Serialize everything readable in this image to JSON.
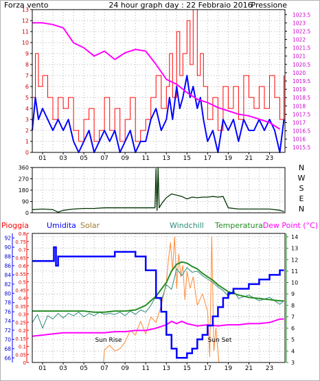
{
  "colors": {
    "wind": "#ff0000",
    "wind_avg": "#0000ff",
    "pressure": "#ff00ff",
    "direction": "#003300",
    "rain": "#ff0000",
    "humidity": "#0000ff",
    "solar": "#ff8833",
    "windchill": "#2e8b7a",
    "temperature": "#228b22",
    "dewpoint": "#ff00ff",
    "frame": "#000000",
    "grid": "#9a9a9a",
    "title": "#000080"
  },
  "header": {
    "left_label": "Forza vento",
    "title": "24 hour graph day : 22 Febbraio 2016",
    "right_label": "Pressione"
  },
  "sun": {
    "rise_label": "Sun Rise",
    "set_label": "Sun Set"
  },
  "chart_data": [
    {
      "type": "line",
      "id": "wind-pressure",
      "x_ticks": [
        "01",
        "03",
        "05",
        "07",
        "09",
        "11",
        "13",
        "15",
        "17",
        "19",
        "21",
        "23"
      ],
      "xlim": [
        0,
        24.5
      ],
      "y_left": {
        "label": "Forza vento",
        "ticks": [
          0,
          1,
          2,
          3,
          4,
          5,
          6,
          7,
          8,
          9,
          10,
          11,
          12,
          13
        ],
        "lim": [
          0,
          13
        ]
      },
      "y_right": {
        "label": "Pressione",
        "ticks": [
          1015.5,
          1016,
          1016.5,
          1017,
          1017.5,
          1018,
          1018.5,
          1019,
          1019.5,
          1020,
          1020.5,
          1021,
          1021.5,
          1022,
          1022.5,
          1023,
          1023.5
        ],
        "lim": [
          1015.2,
          1023.8
        ]
      },
      "grid": true,
      "series": [
        {
          "name": "Forza vento",
          "axis": "left",
          "x": [
            0,
            0.3,
            0.6,
            1,
            1.5,
            2,
            2.5,
            3,
            3.5,
            4,
            4.5,
            5,
            5.5,
            6,
            6.5,
            7,
            7.5,
            8,
            8.5,
            9,
            9.5,
            10,
            10.5,
            11,
            11.5,
            12,
            12.5,
            13,
            13.3,
            13.6,
            14,
            14.3,
            14.6,
            15,
            15.3,
            15.6,
            16,
            16.3,
            16.6,
            17,
            17.5,
            18,
            18.5,
            19,
            19.5,
            20,
            20.5,
            21,
            21.5,
            22,
            22.5,
            23,
            23.5,
            24,
            24.4
          ],
          "y": [
            5,
            9,
            6,
            7,
            5,
            3,
            5,
            4,
            5,
            2,
            1,
            3,
            4,
            1,
            2,
            5,
            2,
            4,
            1,
            3,
            5,
            1,
            2,
            3,
            5,
            7,
            4,
            6,
            9,
            5,
            11,
            7,
            9,
            12,
            8,
            13,
            7,
            9,
            6,
            3,
            5,
            2,
            6,
            4,
            6,
            3,
            7,
            5,
            4,
            6,
            4,
            7,
            5,
            3,
            7
          ]
        },
        {
          "name": "Forza vento media",
          "axis": "left",
          "x": [
            0,
            0.3,
            0.6,
            1,
            1.5,
            2,
            2.5,
            3,
            3.5,
            4,
            4.5,
            5,
            5.5,
            6,
            6.5,
            7,
            7.5,
            8,
            8.5,
            9,
            9.5,
            10,
            10.5,
            11,
            11.5,
            12,
            12.5,
            13,
            13.3,
            13.6,
            14,
            14.3,
            14.6,
            15,
            15.3,
            15.6,
            16,
            16.3,
            16.6,
            17,
            17.5,
            18,
            18.5,
            19,
            19.5,
            20,
            20.5,
            21,
            21.5,
            22,
            22.5,
            23,
            23.5,
            24,
            24.4
          ],
          "y": [
            2,
            5,
            3,
            4,
            3,
            2,
            3,
            2,
            3,
            1,
            0,
            1,
            2,
            0,
            1,
            2,
            1,
            2,
            0,
            1,
            2,
            0,
            1,
            1,
            3,
            4,
            2,
            3,
            5,
            3,
            6,
            4,
            5,
            7,
            5,
            6,
            4,
            5,
            3,
            1,
            2,
            0,
            3,
            2,
            3,
            1,
            3,
            2,
            2,
            3,
            2,
            3,
            2,
            0,
            3
          ]
        },
        {
          "name": "Pressione",
          "axis": "right",
          "x": [
            0,
            1,
            2,
            3,
            4,
            5,
            6,
            7,
            8,
            9,
            10,
            11,
            12,
            13,
            14,
            15,
            16,
            17,
            18,
            19,
            20,
            21,
            22,
            23,
            24
          ],
          "y": [
            1023,
            1023,
            1022.9,
            1022.7,
            1021.8,
            1021.5,
            1021,
            1021.3,
            1020.8,
            1021.2,
            1021.4,
            1021.3,
            1020.5,
            1019.6,
            1019.3,
            1018.8,
            1018.4,
            1018.2,
            1017.9,
            1017.7,
            1017.5,
            1017.4,
            1017.2,
            1017,
            1016.6
          ]
        }
      ]
    },
    {
      "type": "line",
      "id": "direction",
      "xlim": [
        0,
        24.5
      ],
      "y_left": {
        "ticks": [
          0,
          90,
          180,
          270,
          360
        ],
        "lim": [
          0,
          360
        ]
      },
      "y_right_labels": [
        "N",
        "W",
        "S",
        "E",
        "N"
      ],
      "grid": true,
      "series": [
        {
          "name": "Direzione vento",
          "x": [
            0,
            1,
            2,
            2.5,
            3,
            4,
            5,
            6,
            7,
            8,
            9,
            10,
            11,
            11.9,
            12,
            12.1,
            12.2,
            12.3,
            12.6,
            13,
            13.5,
            14,
            14.5,
            15,
            15.5,
            16,
            16.5,
            17,
            17.5,
            18,
            18.5,
            19,
            20,
            21,
            22,
            23,
            24,
            24.4
          ],
          "y": [
            25,
            30,
            25,
            5,
            20,
            30,
            35,
            35,
            40,
            40,
            40,
            40,
            40,
            40,
            350,
            20,
            360,
            40,
            80,
            120,
            150,
            140,
            130,
            110,
            125,
            120,
            125,
            125,
            130,
            125,
            130,
            40,
            30,
            30,
            30,
            30,
            20,
            10
          ]
        }
      ]
    },
    {
      "type": "line",
      "id": "rain-temp",
      "x_ticks": [
        "01",
        "03",
        "05",
        "07",
        "09",
        "11",
        "13",
        "15",
        "17",
        "19",
        "21",
        "23"
      ],
      "xlim": [
        0,
        24.5
      ],
      "header_labels": [
        "Pioggia",
        "Umidita",
        "Solar",
        "Windchill",
        "Temperatura",
        "Dew Point (°C)"
      ],
      "y_rain": {
        "ticks": [
          "0",
          "0.05",
          "0.1",
          "0.15",
          "0.2",
          "0.25",
          "0.3",
          "0.35",
          "0.4",
          "0.45",
          "0.5",
          "0.55",
          "0.6",
          "0.65",
          "0.7",
          "0.75",
          "0.8"
        ],
        "lim": [
          0,
          0.8
        ]
      },
      "y_humidity": {
        "ticks": [
          66,
          68,
          70,
          72,
          74,
          76,
          78,
          80,
          82,
          84,
          86,
          88,
          90,
          92
        ],
        "lim": [
          65,
          93
        ]
      },
      "y_temperature": {
        "ticks": [
          3,
          4,
          5,
          6,
          7,
          8,
          9,
          10,
          11,
          12,
          13,
          14
        ],
        "lim": [
          3,
          14.3
        ]
      },
      "grid": true,
      "series": [
        {
          "name": "Umidita",
          "axis": "humidity",
          "x": [
            0,
            0.5,
            2,
            2.1,
            2.3,
            2.5,
            3,
            4,
            5,
            6,
            7,
            8,
            9,
            10,
            11,
            12,
            12.5,
            13,
            13.5,
            14,
            14.5,
            15,
            15.5,
            16,
            16.5,
            17,
            17.5,
            18,
            18.5,
            19,
            19.5,
            20,
            20.5,
            21,
            21.5,
            22,
            22.5,
            23,
            23.5,
            24,
            24.4
          ],
          "y": [
            87,
            87,
            87,
            90,
            86,
            88,
            88,
            88,
            88,
            88,
            88,
            89,
            89,
            88,
            85,
            79,
            76,
            71,
            68,
            66,
            66,
            67,
            68,
            70,
            71,
            73,
            75,
            77,
            79,
            80,
            81,
            81,
            81,
            82,
            82,
            83,
            83,
            84,
            84,
            85,
            85
          ]
        },
        {
          "name": "Temperatura",
          "axis": "temperature",
          "x": [
            0,
            1,
            2,
            3,
            4,
            5,
            6,
            7,
            8,
            9,
            10,
            11,
            12,
            13,
            13.5,
            14,
            14.5,
            15,
            15.5,
            16,
            16.5,
            17,
            17.5,
            18,
            18.5,
            19,
            20,
            21,
            22,
            23,
            24,
            24.4
          ],
          "y": [
            7.5,
            7.5,
            7.5,
            7.5,
            7.5,
            7.5,
            7.4,
            7.4,
            7.5,
            7.5,
            7.6,
            8,
            8.8,
            10,
            11,
            11.6,
            11.8,
            11.7,
            11.4,
            11.2,
            10.8,
            10.5,
            10.2,
            9.8,
            9.5,
            9.2,
            8.9,
            8.7,
            8.6,
            8.5,
            8.4,
            8.4
          ]
        },
        {
          "name": "Windchill",
          "axis": "temperature",
          "x": [
            0,
            0.5,
            1,
            1.5,
            2,
            2.5,
            3,
            3.5,
            4,
            4.5,
            5,
            5.5,
            6,
            6.5,
            7,
            7.5,
            8,
            8.5,
            9,
            9.5,
            10,
            10.5,
            11,
            11.5,
            12,
            12.5,
            13,
            13.5,
            14,
            14.5,
            15,
            15.5,
            16,
            16.5,
            17,
            17.5,
            18,
            18.5,
            19,
            19.5,
            20,
            21,
            22,
            23,
            24,
            24.4
          ],
          "y": [
            6.5,
            7.2,
            6,
            7.1,
            6.8,
            7.3,
            6.9,
            7.3,
            7.1,
            7.4,
            7,
            7.3,
            7.1,
            7.4,
            7.2,
            7.3,
            7.2,
            7.4,
            7.1,
            7.5,
            7.2,
            7.6,
            7.4,
            8,
            8.8,
            8.4,
            9.8,
            9.4,
            11.2,
            10.6,
            11.3,
            10.9,
            11,
            10.6,
            10.3,
            10,
            9.6,
            9.3,
            8.8,
            9.3,
            8.6,
            8.9,
            8.4,
            8.7,
            8.1,
            8.4
          ]
        },
        {
          "name": "Dew Point",
          "axis": "temperature",
          "x": [
            0,
            1,
            2,
            3,
            4,
            5,
            6,
            7,
            8,
            9,
            10,
            11,
            12,
            13,
            13.5,
            14,
            14.5,
            15,
            16,
            17,
            18,
            19,
            20,
            21,
            22,
            23,
            24,
            24.4
          ],
          "y": [
            5.3,
            5.4,
            5.5,
            5.6,
            5.6,
            5.6,
            5.6,
            5.6,
            5.7,
            5.7,
            5.8,
            5.8,
            6,
            6.3,
            6.6,
            6.4,
            6.6,
            6.4,
            6.2,
            6.3,
            6.2,
            6.3,
            6.3,
            6.4,
            6.4,
            6.5,
            6.8,
            6.8
          ]
        },
        {
          "name": "Solar",
          "axis": "temperature",
          "x": [
            6.9,
            7,
            7.5,
            8,
            8.5,
            9,
            9.5,
            10,
            10.5,
            11,
            11.5,
            12,
            12.5,
            13,
            13.2,
            13.4,
            13.6,
            13.8,
            14,
            14.2,
            14.4,
            14.6,
            14.8,
            15,
            15.3,
            15.6,
            16,
            16.5,
            17,
            17.2,
            17.4,
            17.6,
            17.8,
            18,
            18.1
          ],
          "y": [
            3,
            4.1,
            4.5,
            4,
            4.2,
            4.8,
            5.8,
            5.4,
            6.6,
            5.5,
            7,
            6.5,
            8,
            10,
            12,
            13.5,
            11,
            14,
            9.5,
            12.5,
            10.5,
            11.5,
            8.5,
            11,
            9.5,
            10.5,
            8,
            9,
            7.5,
            3.5,
            14,
            4,
            6,
            4,
            3
          ]
        }
      ]
    }
  ]
}
